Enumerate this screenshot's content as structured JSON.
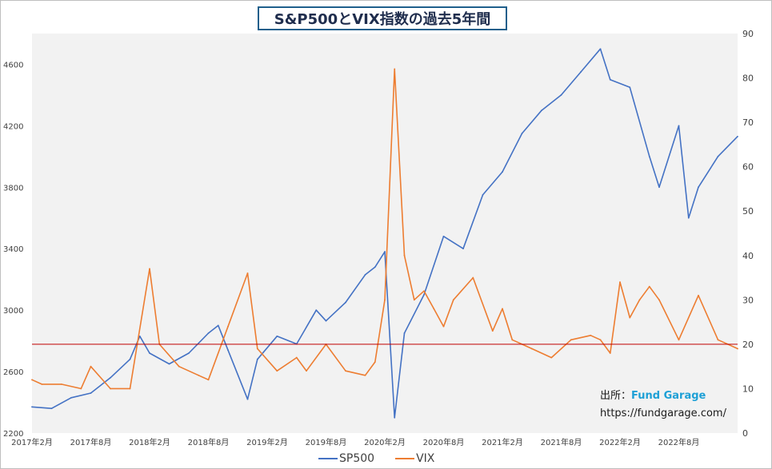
{
  "title": "S&P500とVIX指数の過去5年間",
  "source": {
    "label": "出所：",
    "brand": "Fund Garage",
    "url": "https://fundgarage.com/"
  },
  "colors": {
    "sp500": "#4472c4",
    "vix": "#ed7d31",
    "reference_line": "#c00000",
    "plot_bg": "#f2f2f2"
  },
  "chart_data": {
    "type": "line",
    "title": "S&P500とVIX指数の過去5年間",
    "categories": [
      "2017年2月",
      "2017年8月",
      "2018年2月",
      "2018年8月",
      "2019年2月",
      "2019年8月",
      "2020年2月",
      "2020年8月",
      "2021年2月",
      "2021年8月",
      "2022年2月",
      "2022年8月"
    ],
    "x_range": [
      "2017-02",
      "2023-02"
    ],
    "y_left": {
      "range": [
        2200,
        4800
      ],
      "ticks": [
        2200,
        2600,
        3000,
        3400,
        3800,
        4200,
        4600
      ]
    },
    "y_right": {
      "range": [
        0,
        90
      ],
      "ticks": [
        0,
        10,
        20,
        30,
        40,
        50,
        60,
        70,
        80,
        90
      ]
    },
    "grid": false,
    "legend": "bottom",
    "reference_line": {
      "axis": "right",
      "value": 20
    },
    "series": [
      {
        "name": "SP500",
        "axis": "left",
        "x": [
          "2017-02",
          "2017-04",
          "2017-06",
          "2017-08",
          "2017-10",
          "2017-12",
          "2018-01",
          "2018-02",
          "2018-04",
          "2018-06",
          "2018-08",
          "2018-09",
          "2018-10",
          "2018-12",
          "2019-01",
          "2019-03",
          "2019-05",
          "2019-07",
          "2019-08",
          "2019-10",
          "2019-12",
          "2020-01",
          "2020-02",
          "2020-03",
          "2020-04",
          "2020-06",
          "2020-08",
          "2020-10",
          "2020-12",
          "2021-02",
          "2021-04",
          "2021-06",
          "2021-08",
          "2021-10",
          "2021-12",
          "2022-01",
          "2022-03",
          "2022-05",
          "2022-06",
          "2022-08",
          "2022-09",
          "2022-10",
          "2022-12",
          "2023-02"
        ],
        "values": [
          2370,
          2360,
          2430,
          2460,
          2560,
          2680,
          2830,
          2720,
          2650,
          2720,
          2850,
          2900,
          2740,
          2420,
          2680,
          2830,
          2780,
          3000,
          2930,
          3050,
          3230,
          3280,
          3380,
          2300,
          2850,
          3100,
          3480,
          3400,
          3750,
          3900,
          4150,
          4300,
          4400,
          4550,
          4700,
          4500,
          4450,
          4000,
          3800,
          4200,
          3600,
          3800,
          4000,
          4130
        ]
      },
      {
        "name": "VIX",
        "axis": "right",
        "x": [
          "2017-02",
          "2017-03",
          "2017-05",
          "2017-07",
          "2017-08",
          "2017-10",
          "2017-12",
          "2018-02",
          "2018-03",
          "2018-05",
          "2018-07",
          "2018-08",
          "2018-10",
          "2018-12",
          "2019-01",
          "2019-03",
          "2019-05",
          "2019-06",
          "2019-08",
          "2019-10",
          "2019-12",
          "2020-01",
          "2020-02",
          "2020-03",
          "2020-04",
          "2020-05",
          "2020-06",
          "2020-07",
          "2020-08",
          "2020-09",
          "2020-11",
          "2021-01",
          "2021-02",
          "2021-03",
          "2021-05",
          "2021-07",
          "2021-09",
          "2021-11",
          "2021-12",
          "2022-01",
          "2022-02",
          "2022-03",
          "2022-04",
          "2022-05",
          "2022-06",
          "2022-08",
          "2022-10",
          "2022-12",
          "2023-02"
        ],
        "values": [
          12,
          11,
          11,
          10,
          15,
          10,
          10,
          37,
          20,
          15,
          13,
          12,
          24,
          36,
          19,
          14,
          17,
          14,
          20,
          14,
          13,
          16,
          30,
          82,
          40,
          30,
          32,
          28,
          24,
          30,
          35,
          23,
          28,
          21,
          19,
          17,
          21,
          22,
          21,
          18,
          34,
          26,
          30,
          33,
          30,
          21,
          31,
          21,
          19
        ]
      }
    ]
  }
}
